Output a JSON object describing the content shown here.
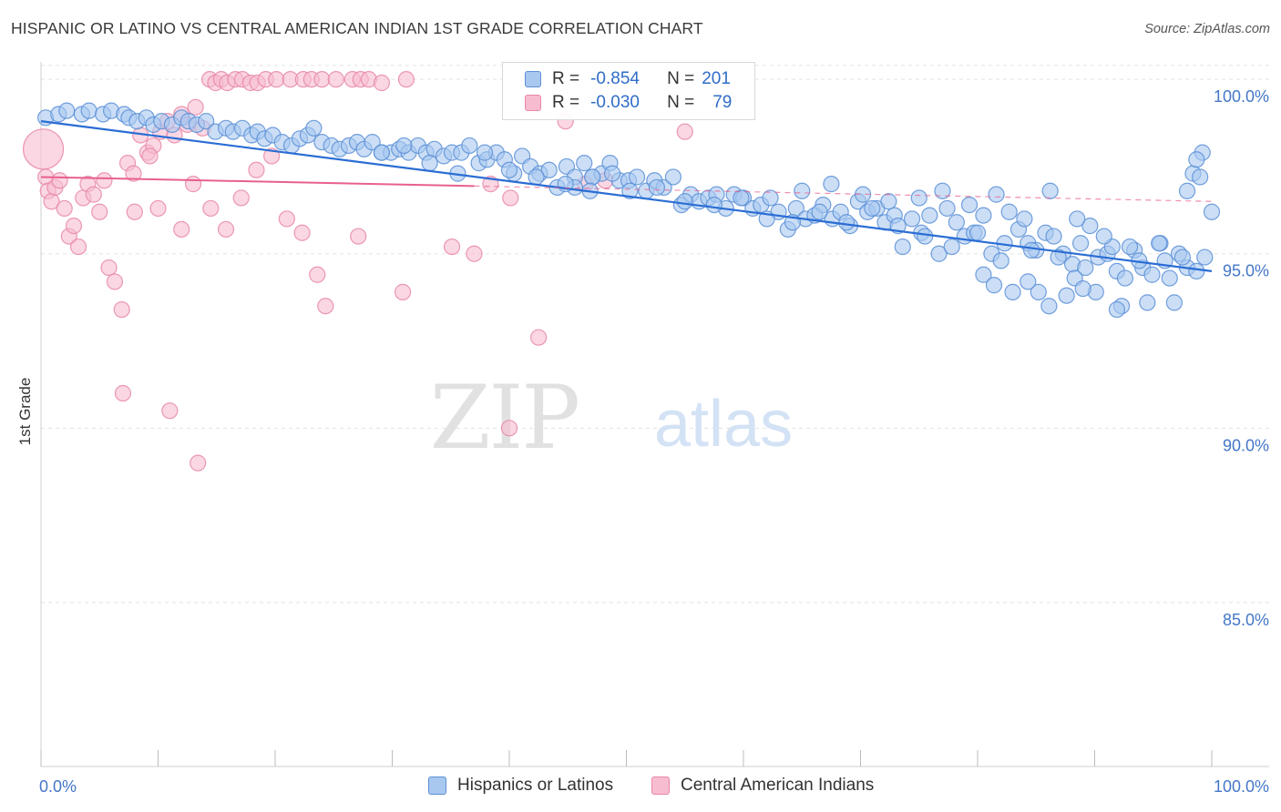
{
  "title": "HISPANIC OR LATINO VS CENTRAL AMERICAN INDIAN 1ST GRADE CORRELATION CHART",
  "source": "Source: ZipAtlas.com",
  "watermark": {
    "zip": "ZIP",
    "atlas": "atlas"
  },
  "legend": {
    "rows": [
      {
        "r_label": "R =",
        "r_value": "-0.854",
        "n_label": "N =",
        "n_value": "201"
      },
      {
        "r_label": "R =",
        "r_value": "-0.030",
        "n_label": "N =",
        "n_value": "79"
      }
    ]
  },
  "colors": {
    "blue_fill": "#a9c8f0",
    "blue_stroke": "#5b8fd6",
    "blue_line": "#2a6dd4",
    "pink_fill": "#f7bcd0",
    "pink_stroke": "#e887a7",
    "pink_line": "#e8608d",
    "axis_text": "#4477c8",
    "grid": "#e3e3e3"
  },
  "chart_data": {
    "type": "scatter",
    "title": "HISPANIC OR LATINO VS CENTRAL AMERICAN INDIAN 1ST GRADE CORRELATION CHART",
    "xlabel": "",
    "ylabel": "1st Grade",
    "xlim": [
      0,
      100
    ],
    "ylim": [
      80.3,
      100.5
    ],
    "x_tick_labels": [
      "0.0%",
      "100.0%"
    ],
    "y_ticks": [
      100,
      95,
      90,
      85
    ],
    "y_tick_labels": [
      "100.0%",
      "95.0%",
      "90.0%",
      "85.0%"
    ],
    "grid": true,
    "legend_position": "bottom",
    "series": [
      {
        "name": "Hispanics or Latinos",
        "color": "#5b8fd6",
        "R": -0.854,
        "N": 201,
        "trend": {
          "x": [
            0,
            100
          ],
          "y": [
            98.8,
            94.5
          ]
        },
        "points": [
          [
            0.4,
            98.9
          ],
          [
            1.5,
            99.0
          ],
          [
            2.2,
            99.1
          ],
          [
            3.5,
            99.0
          ],
          [
            4.1,
            99.1
          ],
          [
            5.3,
            99.0
          ],
          [
            6.0,
            99.1
          ],
          [
            7.1,
            99.0
          ],
          [
            7.5,
            98.9
          ],
          [
            8.2,
            98.8
          ],
          [
            9.0,
            98.9
          ],
          [
            9.6,
            98.7
          ],
          [
            10.3,
            98.8
          ],
          [
            11.2,
            98.7
          ],
          [
            12.0,
            98.9
          ],
          [
            12.6,
            98.8
          ],
          [
            13.3,
            98.7
          ],
          [
            14.1,
            98.8
          ],
          [
            14.9,
            98.5
          ],
          [
            15.8,
            98.6
          ],
          [
            16.4,
            98.5
          ],
          [
            17.2,
            98.6
          ],
          [
            18.0,
            98.4
          ],
          [
            18.5,
            98.5
          ],
          [
            19.1,
            98.3
          ],
          [
            19.8,
            98.4
          ],
          [
            20.6,
            98.2
          ],
          [
            21.4,
            98.1
          ],
          [
            22.1,
            98.3
          ],
          [
            22.8,
            98.4
          ],
          [
            23.3,
            98.6
          ],
          [
            24.0,
            98.2
          ],
          [
            24.8,
            98.1
          ],
          [
            25.5,
            98.0
          ],
          [
            26.3,
            98.1
          ],
          [
            27.0,
            98.2
          ],
          [
            27.6,
            98.0
          ],
          [
            28.3,
            98.2
          ],
          [
            29.1,
            97.9
          ],
          [
            29.9,
            97.9
          ],
          [
            30.6,
            98.0
          ],
          [
            31.4,
            97.9
          ],
          [
            32.2,
            98.1
          ],
          [
            32.9,
            97.9
          ],
          [
            33.6,
            98.0
          ],
          [
            34.4,
            97.8
          ],
          [
            35.1,
            97.9
          ],
          [
            35.9,
            97.9
          ],
          [
            36.6,
            98.1
          ],
          [
            37.4,
            97.6
          ],
          [
            38.1,
            97.7
          ],
          [
            38.9,
            97.9
          ],
          [
            39.6,
            97.7
          ],
          [
            40.4,
            97.3
          ],
          [
            41.1,
            97.8
          ],
          [
            41.8,
            97.5
          ],
          [
            42.6,
            97.3
          ],
          [
            43.4,
            97.4
          ],
          [
            44.1,
            96.9
          ],
          [
            44.9,
            97.5
          ],
          [
            45.6,
            97.2
          ],
          [
            46.4,
            97.6
          ],
          [
            47.1,
            97.2
          ],
          [
            47.9,
            97.3
          ],
          [
            48.6,
            97.6
          ],
          [
            49.4,
            97.1
          ],
          [
            50.2,
            97.1
          ],
          [
            50.9,
            97.2
          ],
          [
            51.7,
            96.8
          ],
          [
            52.4,
            97.1
          ],
          [
            53.2,
            96.9
          ],
          [
            54.0,
            97.2
          ],
          [
            54.7,
            96.4
          ],
          [
            55.5,
            96.7
          ],
          [
            56.2,
            96.5
          ],
          [
            57.0,
            96.6
          ],
          [
            57.7,
            96.7
          ],
          [
            58.5,
            96.3
          ],
          [
            59.2,
            96.7
          ],
          [
            60.0,
            96.6
          ],
          [
            60.8,
            96.3
          ],
          [
            61.5,
            96.4
          ],
          [
            62.3,
            96.6
          ],
          [
            63.0,
            96.2
          ],
          [
            63.8,
            95.7
          ],
          [
            64.5,
            96.3
          ],
          [
            65.3,
            96.0
          ],
          [
            66.1,
            96.1
          ],
          [
            66.8,
            96.4
          ],
          [
            67.6,
            96.0
          ],
          [
            68.3,
            96.2
          ],
          [
            69.1,
            95.8
          ],
          [
            69.8,
            96.5
          ],
          [
            70.6,
            96.2
          ],
          [
            71.4,
            96.3
          ],
          [
            72.1,
            95.9
          ],
          [
            72.9,
            96.1
          ],
          [
            73.6,
            95.2
          ],
          [
            74.4,
            96.0
          ],
          [
            75.2,
            95.6
          ],
          [
            75.9,
            96.1
          ],
          [
            76.7,
            95.0
          ],
          [
            77.4,
            96.3
          ],
          [
            78.2,
            95.9
          ],
          [
            78.9,
            95.5
          ],
          [
            79.7,
            95.6
          ],
          [
            80.5,
            96.1
          ],
          [
            81.2,
            95.0
          ],
          [
            82.0,
            94.8
          ],
          [
            82.7,
            96.2
          ],
          [
            83.5,
            95.7
          ],
          [
            84.3,
            95.3
          ],
          [
            85.0,
            95.1
          ],
          [
            85.8,
            95.6
          ],
          [
            86.5,
            95.5
          ],
          [
            87.3,
            95.0
          ],
          [
            88.1,
            94.7
          ],
          [
            88.8,
            95.3
          ],
          [
            89.6,
            95.8
          ],
          [
            90.3,
            94.9
          ],
          [
            91.1,
            95.0
          ],
          [
            91.9,
            94.5
          ],
          [
            92.6,
            94.3
          ],
          [
            93.4,
            95.1
          ],
          [
            94.1,
            94.6
          ],
          [
            94.9,
            94.4
          ],
          [
            95.6,
            95.3
          ],
          [
            96.4,
            94.3
          ],
          [
            97.2,
            95.0
          ],
          [
            97.9,
            94.6
          ],
          [
            98.7,
            94.5
          ],
          [
            99.4,
            94.9
          ],
          [
            100.0,
            96.2
          ],
          [
            98.4,
            97.3
          ],
          [
            99.0,
            97.2
          ],
          [
            97.9,
            96.8
          ],
          [
            99.2,
            97.9
          ],
          [
            98.7,
            97.7
          ],
          [
            45.6,
            96.9
          ],
          [
            47.1,
            97.2
          ],
          [
            29.1,
            97.9
          ],
          [
            31.0,
            98.1
          ],
          [
            33.2,
            97.6
          ],
          [
            35.6,
            97.3
          ],
          [
            37.9,
            97.9
          ],
          [
            40.0,
            97.4
          ],
          [
            42.3,
            97.2
          ],
          [
            44.8,
            97.0
          ],
          [
            46.9,
            96.8
          ],
          [
            48.8,
            97.3
          ],
          [
            50.3,
            96.8
          ],
          [
            52.6,
            96.9
          ],
          [
            55.0,
            96.5
          ],
          [
            57.5,
            96.4
          ],
          [
            59.8,
            96.6
          ],
          [
            62.0,
            96.0
          ],
          [
            64.2,
            95.9
          ],
          [
            66.5,
            96.2
          ],
          [
            68.8,
            95.9
          ],
          [
            71.0,
            96.3
          ],
          [
            73.2,
            95.8
          ],
          [
            75.5,
            95.5
          ],
          [
            77.8,
            95.2
          ],
          [
            80.0,
            95.6
          ],
          [
            82.3,
            95.3
          ],
          [
            84.6,
            95.1
          ],
          [
            86.9,
            94.9
          ],
          [
            89.2,
            94.6
          ],
          [
            91.5,
            95.2
          ],
          [
            93.8,
            94.8
          ],
          [
            96.0,
            94.8
          ],
          [
            65.0,
            96.8
          ],
          [
            67.5,
            97.0
          ],
          [
            70.2,
            96.7
          ],
          [
            72.4,
            96.5
          ],
          [
            75.0,
            96.6
          ],
          [
            77.0,
            96.8
          ],
          [
            79.3,
            96.4
          ],
          [
            81.6,
            96.7
          ],
          [
            84.0,
            96.0
          ],
          [
            86.2,
            96.8
          ],
          [
            88.5,
            96.0
          ],
          [
            90.8,
            95.5
          ],
          [
            93.0,
            95.2
          ],
          [
            95.5,
            95.3
          ],
          [
            97.5,
            94.9
          ],
          [
            83.0,
            93.9
          ],
          [
            85.2,
            93.9
          ],
          [
            87.6,
            93.8
          ],
          [
            90.1,
            93.9
          ],
          [
            92.3,
            93.5
          ],
          [
            94.5,
            93.6
          ],
          [
            96.8,
            93.6
          ],
          [
            88.3,
            94.3
          ],
          [
            91.9,
            93.4
          ],
          [
            86.1,
            93.5
          ],
          [
            89.0,
            94.0
          ],
          [
            84.3,
            94.2
          ],
          [
            80.5,
            94.4
          ],
          [
            81.4,
            94.1
          ]
        ]
      },
      {
        "name": "Central American Indians",
        "color": "#e887a7",
        "R": -0.03,
        "N": 79,
        "trend": {
          "x": [
            0,
            100
          ],
          "y": [
            97.2,
            96.5
          ]
        },
        "points": [
          [
            0.2,
            98.0
          ],
          [
            0.4,
            97.2
          ],
          [
            0.6,
            96.8
          ],
          [
            0.9,
            96.5
          ],
          [
            1.2,
            96.9
          ],
          [
            1.6,
            97.1
          ],
          [
            2.0,
            96.3
          ],
          [
            2.4,
            95.5
          ],
          [
            2.8,
            95.8
          ],
          [
            3.2,
            95.2
          ],
          [
            3.6,
            96.6
          ],
          [
            4.0,
            97.0
          ],
          [
            4.5,
            96.7
          ],
          [
            5.0,
            96.2
          ],
          [
            5.4,
            97.1
          ],
          [
            5.8,
            94.6
          ],
          [
            6.3,
            94.2
          ],
          [
            6.9,
            93.4
          ],
          [
            7.4,
            97.6
          ],
          [
            7.9,
            97.3
          ],
          [
            8.5,
            98.4
          ],
          [
            9.1,
            97.9
          ],
          [
            9.6,
            98.1
          ],
          [
            10.2,
            98.5
          ],
          [
            10.8,
            98.8
          ],
          [
            11.4,
            98.4
          ],
          [
            12.0,
            99.0
          ],
          [
            12.5,
            98.7
          ],
          [
            13.2,
            99.2
          ],
          [
            13.8,
            98.6
          ],
          [
            14.4,
            100.0
          ],
          [
            14.9,
            99.9
          ],
          [
            15.4,
            100.0
          ],
          [
            15.9,
            99.9
          ],
          [
            16.6,
            100.0
          ],
          [
            17.2,
            100.0
          ],
          [
            17.9,
            99.9
          ],
          [
            18.5,
            99.9
          ],
          [
            19.2,
            100.0
          ],
          [
            20.1,
            100.0
          ],
          [
            21.3,
            100.0
          ],
          [
            22.4,
            100.0
          ],
          [
            23.1,
            100.0
          ],
          [
            24.0,
            100.0
          ],
          [
            25.2,
            100.0
          ],
          [
            26.6,
            100.0
          ],
          [
            27.3,
            100.0
          ],
          [
            28.0,
            100.0
          ],
          [
            29.1,
            99.9
          ],
          [
            31.2,
            100.0
          ],
          [
            13.0,
            97.0
          ],
          [
            14.5,
            96.3
          ],
          [
            15.8,
            95.7
          ],
          [
            17.1,
            96.6
          ],
          [
            18.4,
            97.4
          ],
          [
            19.7,
            97.8
          ],
          [
            21.0,
            96.0
          ],
          [
            22.3,
            95.6
          ],
          [
            23.6,
            94.4
          ],
          [
            8.0,
            96.2
          ],
          [
            10.0,
            96.3
          ],
          [
            12.0,
            95.7
          ],
          [
            7.0,
            91.0
          ],
          [
            11.0,
            90.5
          ],
          [
            13.4,
            89.0
          ],
          [
            40.0,
            90.0
          ],
          [
            42.5,
            92.6
          ],
          [
            37.0,
            95.0
          ],
          [
            35.1,
            95.2
          ],
          [
            30.9,
            93.9
          ],
          [
            24.3,
            93.5
          ],
          [
            27.1,
            95.5
          ],
          [
            46.5,
            97.0
          ],
          [
            48.2,
            97.1
          ],
          [
            55.0,
            98.5
          ],
          [
            38.4,
            97.0
          ],
          [
            40.1,
            96.6
          ],
          [
            44.8,
            98.8
          ],
          [
            9.3,
            97.8
          ]
        ]
      }
    ]
  }
}
